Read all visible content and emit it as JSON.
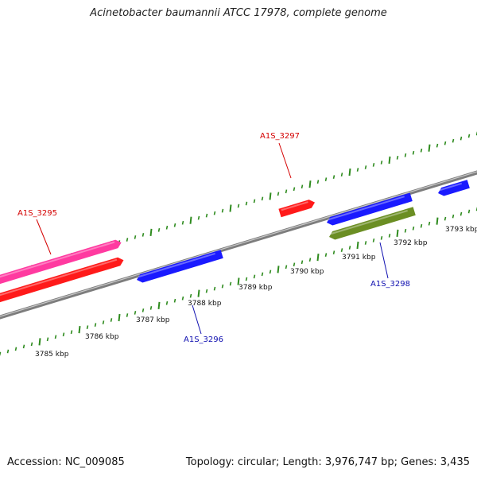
{
  "title": "Acinetobacter baumannii ATCC 17978, complete genome",
  "footer": {
    "accession": "Accession: NC_009085",
    "stats": "Topology: circular; Length: 3,976,747 bp; Genes: 3,435"
  },
  "colors": {
    "backbone": "#8a8a8a",
    "tick": "#2e8b1e",
    "forward_label": "#d40000",
    "reverse_label": "#1010b0"
  },
  "scale_labels": [
    "3785 kbp",
    "3786 kbp",
    "3787 kbp",
    "3788 kbp",
    "3789 kbp",
    "3790 kbp",
    "3791 kbp",
    "3792 kbp",
    "3793 kbp"
  ],
  "genes": [
    {
      "label": "A1S_3295",
      "color": "#ff3aa0",
      "strand": "forward",
      "label_color": "#d40000"
    },
    {
      "label": "A1S_3297",
      "color": "#ff1a1a",
      "strand": "forward",
      "label_color": "#d40000"
    },
    {
      "label": "A1S_3296",
      "color": "#1a1aff",
      "strand": "reverse",
      "label_color": "#1010b0"
    },
    {
      "label": "A1S_3298",
      "color": "#1a1aff",
      "strand": "reverse",
      "label_color": "#1010b0"
    }
  ]
}
